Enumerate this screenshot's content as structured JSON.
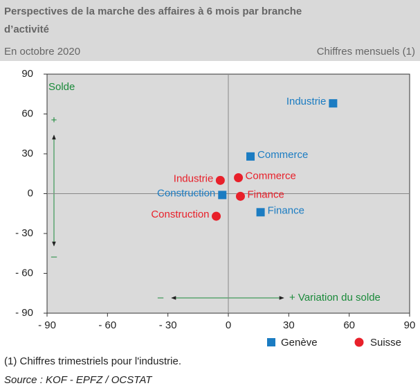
{
  "chart_data": {
    "type": "scatter",
    "title": "Perspectives de la marche des affaires à 6 mois par branche d’activité",
    "subtitle": "En octobre 2020",
    "subtitle_right": "Chiffres mensuels (1)",
    "footnote": "(1) Chiffres trimestriels pour l'industrie.",
    "source": "Source : KOF - EPFZ / OCSTAT",
    "annotations": {
      "y_label": "Solde",
      "y_plus": "+",
      "y_minus": "–",
      "x_minus": "–",
      "x_label": "+ Variation du solde"
    },
    "series": [
      {
        "name": "Genève",
        "color": "#1b7cc2",
        "marker": "square",
        "labels": [
          "Industrie",
          "Commerce",
          "Construction",
          "Finance"
        ],
        "x": [
          52,
          11,
          -3,
          16
        ],
        "values": [
          68,
          28,
          -1,
          -14
        ]
      },
      {
        "name": "Suisse",
        "color": "#e8202a",
        "marker": "circle",
        "labels": [
          "Industrie",
          "Commerce",
          "Construction",
          "Finance"
        ],
        "x": [
          -4,
          5,
          -6,
          6
        ],
        "values": [
          10,
          12,
          -17,
          -2
        ]
      }
    ],
    "xlim": [
      -90,
      90
    ],
    "xticks": [
      {
        "value": -90,
        "label": "- 90"
      },
      {
        "value": -60,
        "label": "- 60"
      },
      {
        "value": -30,
        "label": "- 30"
      },
      0,
      30,
      60,
      90
    ],
    "ylim": [
      -90,
      90
    ],
    "yticks": [
      {
        "value": -90,
        "label": "- 90"
      },
      {
        "value": -60,
        "label": "- 60"
      },
      {
        "value": -30,
        "label": "- 30"
      },
      0,
      30,
      60,
      90
    ]
  }
}
